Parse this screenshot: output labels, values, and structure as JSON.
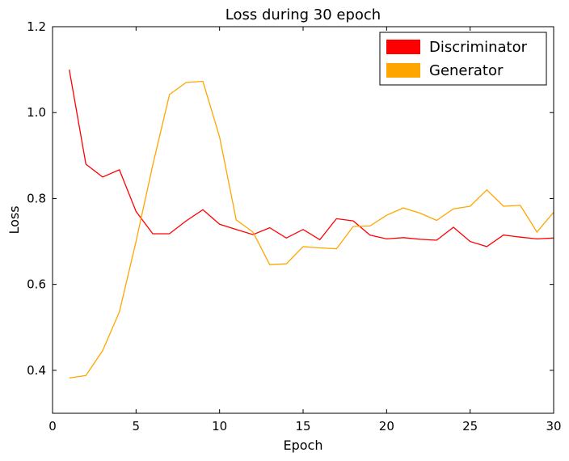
{
  "chart_data": {
    "type": "line",
    "title": "Loss during 30 epoch",
    "xlabel": "Epoch",
    "ylabel": "Loss",
    "xlim": [
      0,
      30
    ],
    "ylim": [
      0.3,
      1.2
    ],
    "xticks": [
      0,
      5,
      10,
      15,
      20,
      25,
      30
    ],
    "yticks": [
      0.4,
      0.6,
      0.8,
      1.0,
      1.2
    ],
    "xtick_labels": [
      "0",
      "5",
      "10",
      "15",
      "20",
      "25",
      "30"
    ],
    "ytick_labels": [
      "0.4",
      "0.6",
      "0.8",
      "1.0",
      "1.2"
    ],
    "grid": false,
    "legend_position": "top-right",
    "x": [
      1,
      2,
      3,
      4,
      5,
      6,
      7,
      8,
      9,
      10,
      11,
      12,
      13,
      14,
      15,
      16,
      17,
      18,
      19,
      20,
      21,
      22,
      23,
      24,
      25,
      26,
      27,
      28,
      29,
      30
    ],
    "series": [
      {
        "name": "Discriminator",
        "color": "#ff0000",
        "values": [
          1.1,
          0.88,
          0.85,
          0.867,
          0.77,
          0.718,
          0.718,
          0.748,
          0.774,
          0.74,
          0.728,
          0.716,
          0.732,
          0.708,
          0.728,
          0.704,
          0.753,
          0.748,
          0.715,
          0.706,
          0.709,
          0.705,
          0.703,
          0.733,
          0.7,
          0.688,
          0.715,
          0.71,
          0.706,
          0.708
        ]
      },
      {
        "name": "Generator",
        "color": "#ffa500",
        "values": [
          0.382,
          0.388,
          0.446,
          0.536,
          0.7,
          0.878,
          1.042,
          1.07,
          1.073,
          0.943,
          0.75,
          0.722,
          0.646,
          0.648,
          0.688,
          0.685,
          0.683,
          0.735,
          0.736,
          0.761,
          0.778,
          0.766,
          0.749,
          0.776,
          0.782,
          0.82,
          0.782,
          0.784,
          0.722,
          0.768
        ]
      }
    ]
  }
}
